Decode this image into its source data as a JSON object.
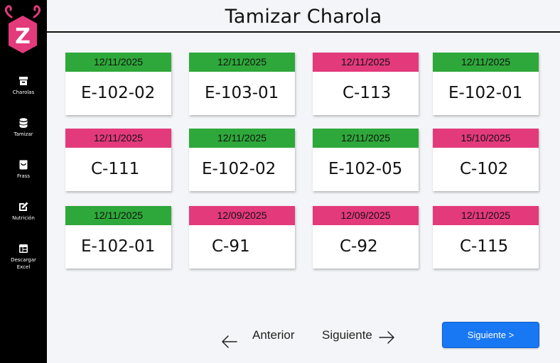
{
  "app": {
    "logo_letter": "Z"
  },
  "sidebar": {
    "items": [
      {
        "label": "Charolas",
        "icon": "archive-icon"
      },
      {
        "label": "Tamizar",
        "icon": "database-icon"
      },
      {
        "label": "Frass",
        "icon": "bag-icon"
      },
      {
        "label": "Nutrición",
        "icon": "edit-icon"
      },
      {
        "label": "Descargar Excel",
        "icon": "table-icon"
      }
    ]
  },
  "header": {
    "title": "Tamizar Charola"
  },
  "colors": {
    "green": "#2ea83a",
    "pink": "#e33a7c",
    "primary": "#1877f2",
    "sidebar": "#000000"
  },
  "cards": [
    {
      "date": "12/11/2025",
      "code": "E-102-02",
      "status": "green"
    },
    {
      "date": "12/11/2025",
      "code": "E-103-01",
      "status": "green"
    },
    {
      "date": "12/11/2025",
      "code": "C-113",
      "status": "pink"
    },
    {
      "date": "12/11/2025",
      "code": "E-102-01",
      "status": "green"
    },
    {
      "date": "12/11/2025",
      "code": "C-111",
      "status": "pink"
    },
    {
      "date": "12/11/2025",
      "code": "E-102-02",
      "status": "green"
    },
    {
      "date": "12/11/2025",
      "code": "E-102-05",
      "status": "green"
    },
    {
      "date": "15/10/2025",
      "code": "C-102",
      "status": "pink"
    },
    {
      "date": "12/11/2025",
      "code": "E-102-01",
      "status": "green"
    },
    {
      "date": "12/09/2025",
      "code": "C-91",
      "status": "pink"
    },
    {
      "date": "12/09/2025",
      "code": "C-92",
      "status": "pink"
    },
    {
      "date": "12/11/2025",
      "code": "C-115",
      "status": "pink"
    }
  ],
  "pagination": {
    "prev_label": "Anterior",
    "next_label": "Siguiente"
  },
  "actions": {
    "next_button_label": "Siguiente >"
  }
}
